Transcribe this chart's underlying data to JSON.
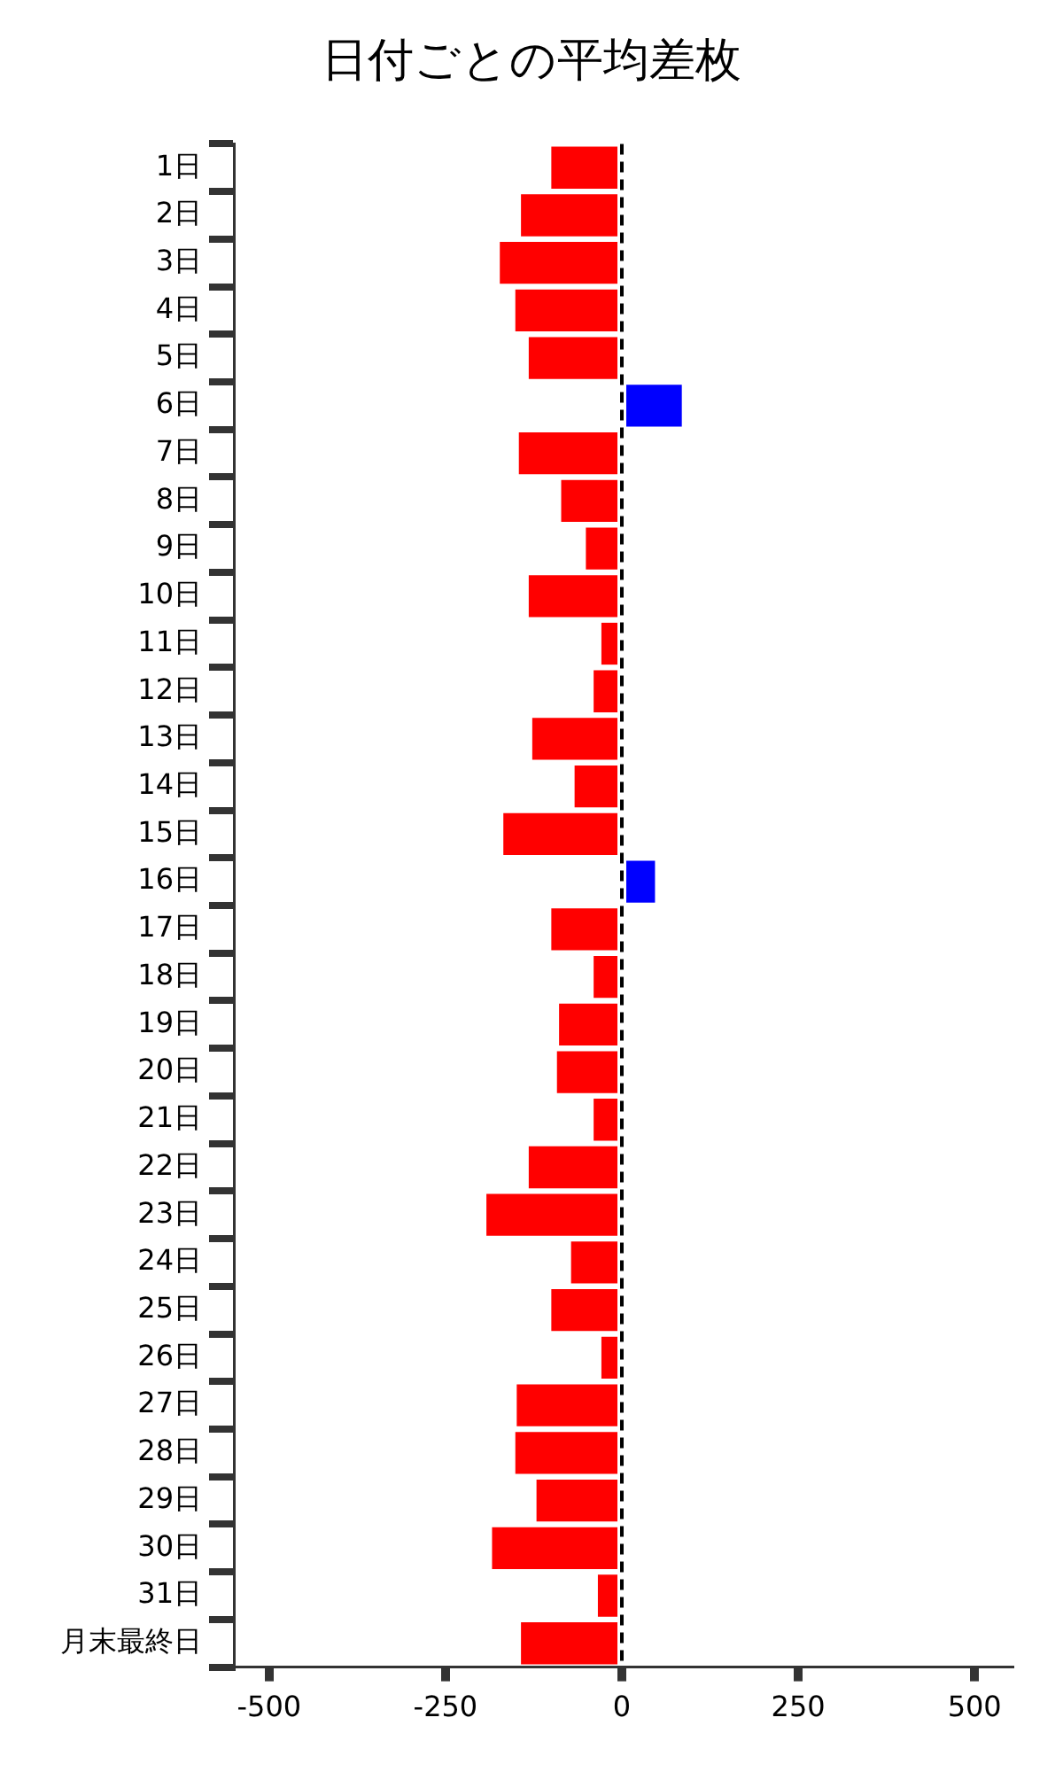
{
  "chart_data": {
    "type": "bar",
    "orientation": "horizontal",
    "title": "日付ごとの平均差枚",
    "categories": [
      "1日",
      "2日",
      "3日",
      "4日",
      "5日",
      "6日",
      "7日",
      "8日",
      "9日",
      "10日",
      "11日",
      "12日",
      "13日",
      "14日",
      "15日",
      "16日",
      "17日",
      "18日",
      "19日",
      "20日",
      "21日",
      "22日",
      "23日",
      "24日",
      "25日",
      "26日",
      "27日",
      "28日",
      "29日",
      "30日",
      "31日",
      "月末最終日"
    ],
    "values": [
      -100,
      -143,
      -173,
      -151,
      -132,
      85,
      -146,
      -86,
      -51,
      -132,
      -29,
      -40,
      -127,
      -67,
      -168,
      47,
      -100,
      -40,
      -89,
      -92,
      -40,
      -132,
      -192,
      -72,
      -100,
      -29,
      -149,
      -151,
      -121,
      -184,
      -34,
      -143
    ],
    "colors": [
      "#ff0000",
      "#ff0000",
      "#ff0000",
      "#ff0000",
      "#ff0000",
      "#0000ff",
      "#ff0000",
      "#ff0000",
      "#ff0000",
      "#ff0000",
      "#ff0000",
      "#ff0000",
      "#ff0000",
      "#ff0000",
      "#ff0000",
      "#0000ff",
      "#ff0000",
      "#ff0000",
      "#ff0000",
      "#ff0000",
      "#ff0000",
      "#ff0000",
      "#ff0000",
      "#ff0000",
      "#ff0000",
      "#ff0000",
      "#ff0000",
      "#ff0000",
      "#ff0000",
      "#ff0000",
      "#ff0000",
      "#ff0000"
    ],
    "xlim": [
      -550,
      550
    ],
    "xticks": [
      -500,
      -250,
      0,
      250,
      500
    ],
    "ref_lines": [
      {
        "axis": "x",
        "value": 0,
        "color": "#000000",
        "line_style": "dashed"
      }
    ],
    "grid": false,
    "legend": false
  }
}
